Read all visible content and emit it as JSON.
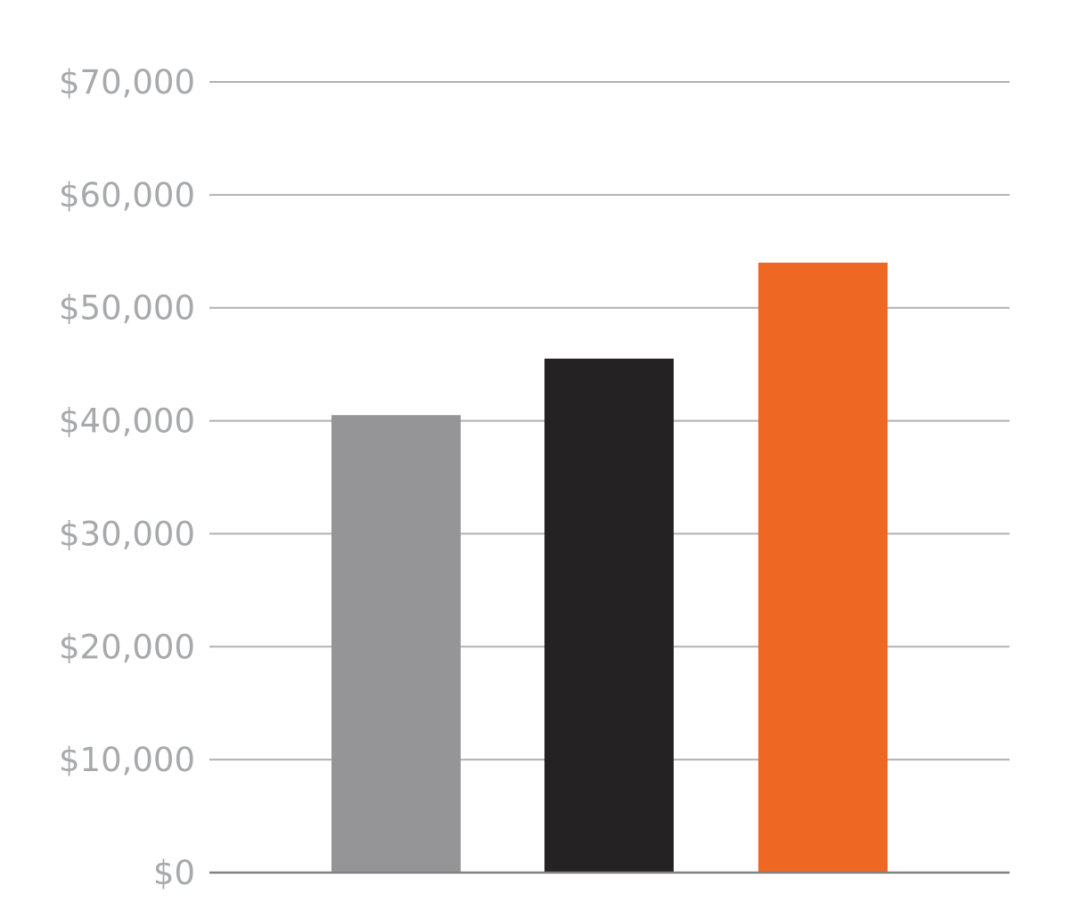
{
  "chart_data": {
    "type": "bar",
    "title": "",
    "xlabel": "",
    "ylabel": "",
    "categories": [
      "",
      "",
      ""
    ],
    "values": [
      40500,
      45500,
      54000
    ],
    "bar_colors": [
      "#959598",
      "#252223",
      "#ee6723"
    ],
    "ylim": [
      0,
      70000
    ],
    "y_ticks": [
      0,
      10000,
      20000,
      30000,
      40000,
      50000,
      60000,
      70000
    ],
    "y_tick_labels": [
      "$0",
      "$10,000",
      "$20,000",
      "$30,000",
      "$40,000",
      "$50,000",
      "$60,000",
      "$70,000"
    ],
    "grid": true,
    "grid_color": "#b1b1b1",
    "legend": "none"
  }
}
